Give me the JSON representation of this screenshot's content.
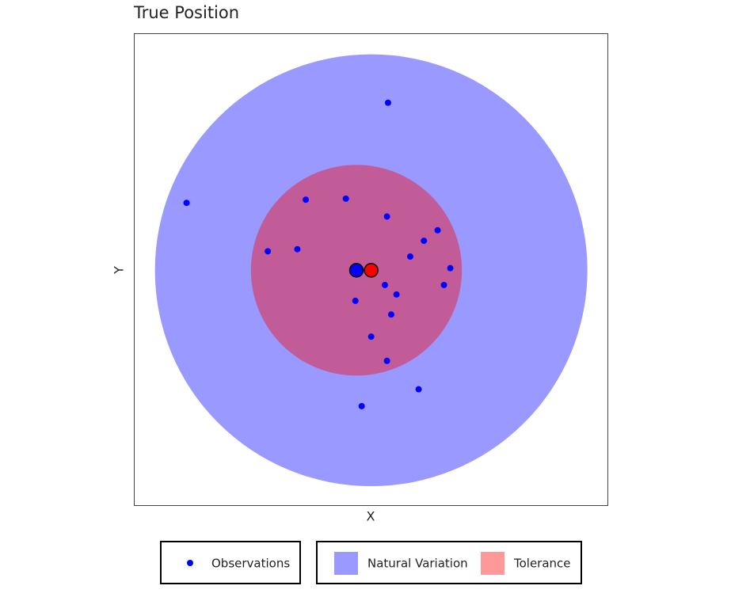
{
  "chart_data": {
    "type": "scatter",
    "title": "True Position",
    "x_label": "X",
    "y_label": "Y",
    "xlim": [
      -2.11,
      2.38
    ],
    "ylim": [
      -2.23,
      2.25
    ],
    "circles": [
      {
        "name": "Natural Variation",
        "color": "#0000ff",
        "opacity": 0.4,
        "center": [
          0.14,
          0
        ],
        "radius": 2.05
      },
      {
        "name": "Tolerance",
        "color": "#ff0000",
        "opacity": 0.4,
        "center": [
          0,
          0
        ],
        "radius": 1
      }
    ],
    "series": [
      {
        "name": "Observations",
        "color": "#0000ff",
        "x": [
          0.3,
          -1.61,
          -0.48,
          -0.1,
          0.29,
          0.77,
          0.64,
          -0.84,
          -0.56,
          0.51,
          0.89,
          0.27,
          0.83,
          0.38,
          -0.01,
          0.33,
          0.14,
          0.29,
          0.59,
          0.05
        ],
        "values": [
          1.59,
          0.64,
          0.67,
          0.68,
          0.51,
          0.38,
          0.28,
          0.18,
          0.2,
          0.13,
          0.02,
          -0.14,
          -0.14,
          -0.23,
          -0.29,
          -0.42,
          -0.63,
          -0.86,
          -1.13,
          -1.29
        ]
      }
    ],
    "markers": [
      {
        "color": "#0000ff",
        "x": 0,
        "y": 0
      },
      {
        "color": "#ff0000",
        "x": 0.14,
        "y": 0
      }
    ]
  }
}
